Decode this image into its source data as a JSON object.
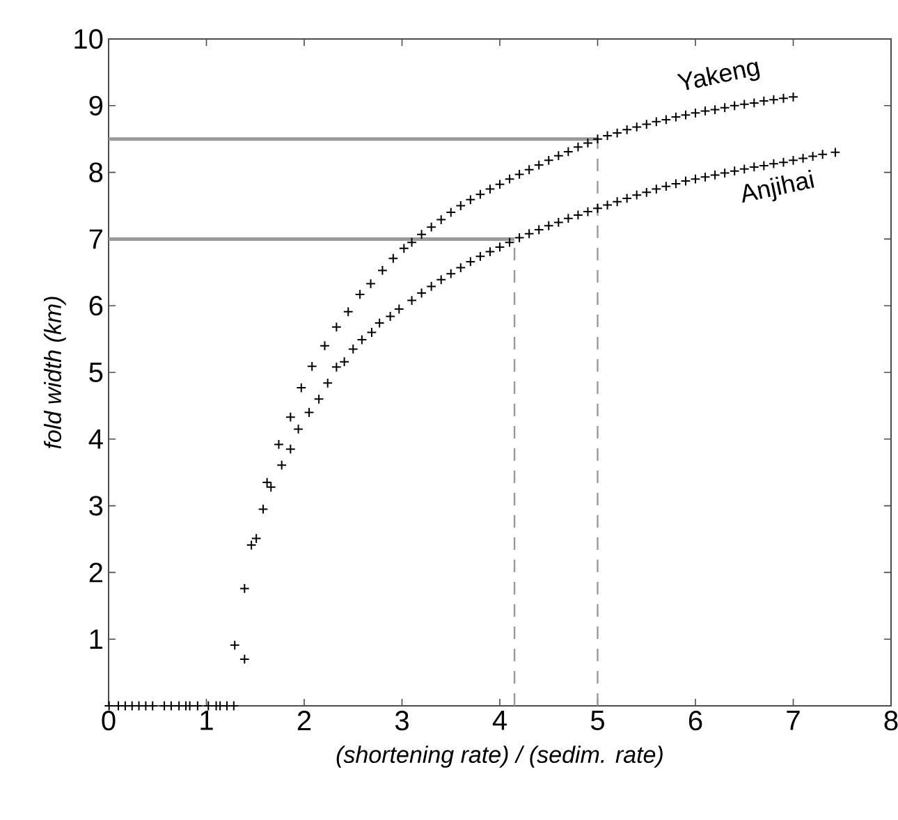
{
  "chart_data": {
    "type": "scatter",
    "xlabel": "(shortening rate) / (sedim. rate)",
    "ylabel": "fold width (km)",
    "xlim": [
      0,
      8
    ],
    "ylim": [
      0,
      10
    ],
    "xticks": [
      0,
      1,
      2,
      3,
      4,
      5,
      6,
      7,
      8
    ],
    "yticks": [
      1,
      2,
      3,
      4,
      5,
      6,
      7,
      8,
      9,
      10
    ],
    "marker": "cross",
    "grid": false,
    "legend": false,
    "series": [
      {
        "name": "Yakeng",
        "color": "#000000",
        "x": [
          1.29,
          1.39,
          1.51,
          1.58,
          1.62,
          1.74,
          1.86,
          1.97,
          2.08,
          2.21,
          2.33,
          2.45,
          2.57,
          2.68,
          2.8,
          2.91,
          3.02,
          3.1,
          3.2,
          3.3,
          3.4,
          3.5,
          3.6,
          3.7,
          3.8,
          3.9,
          4.0,
          4.1,
          4.2,
          4.3,
          4.4,
          4.5,
          4.6,
          4.7,
          4.8,
          4.9,
          5.0,
          5.1,
          5.2,
          5.3,
          5.4,
          5.5,
          5.6,
          5.7,
          5.8,
          5.9,
          6.0,
          6.1,
          6.2,
          6.3,
          6.4,
          6.5,
          6.6,
          6.7,
          6.8,
          6.9,
          7.0
        ],
        "values": [
          0.91,
          1.76,
          2.51,
          2.95,
          3.35,
          3.92,
          4.33,
          4.77,
          5.09,
          5.4,
          5.68,
          5.91,
          6.17,
          6.33,
          6.53,
          6.71,
          6.86,
          6.95,
          7.07,
          7.18,
          7.29,
          7.4,
          7.5,
          7.59,
          7.67,
          7.75,
          7.82,
          7.9,
          7.97,
          8.04,
          8.11,
          8.18,
          8.25,
          8.31,
          8.38,
          8.44,
          8.5,
          8.55,
          8.59,
          8.64,
          8.68,
          8.72,
          8.76,
          8.79,
          8.83,
          8.86,
          8.89,
          8.92,
          8.94,
          8.97,
          9.0,
          9.02,
          9.04,
          9.07,
          9.09,
          9.11,
          9.13
        ]
      },
      {
        "name": "Anjihai",
        "color": "#000000",
        "x": [
          1.39,
          1.46,
          1.66,
          1.77,
          1.86,
          1.94,
          2.05,
          2.15,
          2.24,
          2.33,
          2.41,
          2.5,
          2.59,
          2.69,
          2.77,
          2.88,
          2.97,
          3.1,
          3.2,
          3.3,
          3.4,
          3.5,
          3.6,
          3.7,
          3.8,
          3.9,
          4.0,
          4.1,
          4.2,
          4.3,
          4.4,
          4.5,
          4.6,
          4.7,
          4.8,
          4.9,
          5.0,
          5.1,
          5.2,
          5.3,
          5.4,
          5.5,
          5.6,
          5.7,
          5.8,
          5.9,
          6.0,
          6.1,
          6.2,
          6.3,
          6.4,
          6.5,
          6.6,
          6.7,
          6.8,
          6.9,
          7.0,
          7.1,
          7.2,
          7.3,
          7.43
        ],
        "values": [
          0.7,
          2.41,
          3.28,
          3.61,
          3.85,
          4.15,
          4.4,
          4.6,
          4.84,
          5.08,
          5.16,
          5.35,
          5.49,
          5.6,
          5.74,
          5.84,
          5.95,
          6.08,
          6.19,
          6.29,
          6.39,
          6.48,
          6.57,
          6.66,
          6.74,
          6.81,
          6.88,
          6.95,
          7.02,
          7.08,
          7.14,
          7.2,
          7.25,
          7.31,
          7.36,
          7.41,
          7.46,
          7.51,
          7.56,
          7.61,
          7.66,
          7.7,
          7.75,
          7.79,
          7.83,
          7.87,
          7.9,
          7.93,
          7.96,
          7.99,
          8.02,
          8.05,
          8.08,
          8.1,
          8.13,
          8.15,
          8.18,
          8.21,
          8.24,
          8.27,
          8.3
        ]
      },
      {
        "color": "#000000",
        "x": [
          0.005,
          0.1,
          0.17,
          0.24,
          0.31,
          0.38,
          0.45,
          0.57,
          0.64,
          0.72,
          0.79,
          0.83,
          0.91,
          1.02,
          1.1,
          1.14,
          1.21,
          1.28
        ],
        "values": [
          0,
          0,
          0,
          0,
          0,
          0,
          0,
          0,
          0,
          0,
          0,
          0,
          0,
          0,
          0,
          0,
          0,
          0
        ]
      },
      {
        "type": "line",
        "color": "#999999",
        "line_style": "solid",
        "marker": "none",
        "x": [
          0,
          5
        ],
        "values": [
          8.5,
          8.5
        ]
      },
      {
        "type": "line",
        "color": "#999999",
        "line_style": "solid",
        "marker": "none",
        "x": [
          0,
          4.15
        ],
        "values": [
          7,
          7
        ]
      },
      {
        "type": "line",
        "color": "#999999",
        "line_style": "dashed",
        "marker": "none",
        "x": [
          5,
          5
        ],
        "values": [
          0,
          8.5
        ]
      },
      {
        "type": "line",
        "color": "#999999",
        "line_style": "dashed",
        "marker": "none",
        "x": [
          4.15,
          4.15
        ],
        "values": [
          0,
          7
        ]
      }
    ]
  }
}
